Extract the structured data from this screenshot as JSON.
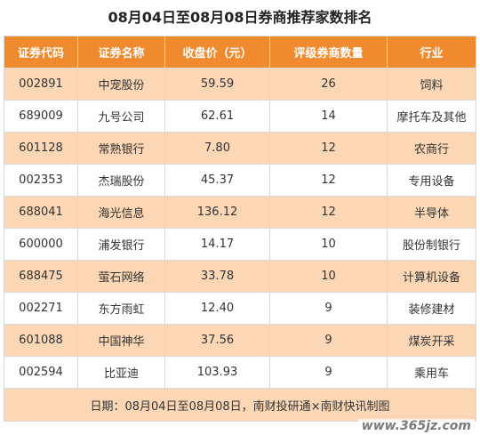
{
  "title": "08月04日至08月08日券商推荐家数排名",
  "headers": [
    "证券代码",
    "证券名称",
    "收盘价（元）",
    "评级券商数量",
    "行业"
  ],
  "rows": [
    [
      "002891",
      "中宠股份",
      "59.59",
      "26",
      "饲料"
    ],
    [
      "689009",
      "九号公司",
      "62.61",
      "14",
      "摩托车及其他"
    ],
    [
      "601128",
      "常熟银行",
      "7.80",
      "12",
      "农商行"
    ],
    [
      "002353",
      "杰瑞股份",
      "45.37",
      "12",
      "专用设备"
    ],
    [
      "688041",
      "海光信息",
      "136.12",
      "12",
      "半导体"
    ],
    [
      "600000",
      "浦发银行",
      "14.17",
      "10",
      "股份制银行"
    ],
    [
      "688475",
      "萤石网络",
      "33.78",
      "10",
      "计算机设备"
    ],
    [
      "002271",
      "东方雨虹",
      "12.40",
      "9",
      "装修建材"
    ],
    [
      "601088",
      "中国神华",
      "37.56",
      "9",
      "煤炭开采"
    ],
    [
      "002594",
      "比亚迪",
      "103.93",
      "9",
      "乘用车"
    ]
  ],
  "footer": "日期：08月04日至08月08日，南财投研通×南财快讯制图",
  "watermark": "www.365jz.com",
  "colors": {
    "header_bg": "#ef8a2e",
    "stripe_bg": "#fbd7b5"
  }
}
